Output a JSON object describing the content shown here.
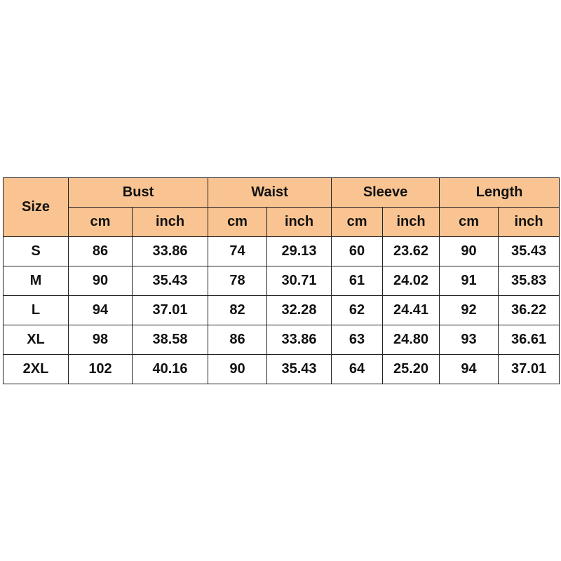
{
  "table": {
    "header": {
      "first": "Size",
      "groups": [
        "Bust",
        "Waist",
        "Sleeve",
        "Length"
      ],
      "units": [
        "cm",
        "inch",
        "cm",
        "inch",
        "cm",
        "inch",
        "cm",
        "inch"
      ]
    },
    "rows": [
      [
        "S",
        "86",
        "33.86",
        "74",
        "29.13",
        "60",
        "23.62",
        "90",
        "35.43"
      ],
      [
        "M",
        "90",
        "35.43",
        "78",
        "30.71",
        "61",
        "24.02",
        "91",
        "35.83"
      ],
      [
        "L",
        "94",
        "37.01",
        "82",
        "32.28",
        "62",
        "24.41",
        "92",
        "36.22"
      ],
      [
        "XL",
        "98",
        "38.58",
        "86",
        "33.86",
        "63",
        "24.80",
        "93",
        "36.61"
      ],
      [
        "2XL",
        "102",
        "40.16",
        "90",
        "35.43",
        "64",
        "25.20",
        "94",
        "37.01"
      ]
    ]
  }
}
